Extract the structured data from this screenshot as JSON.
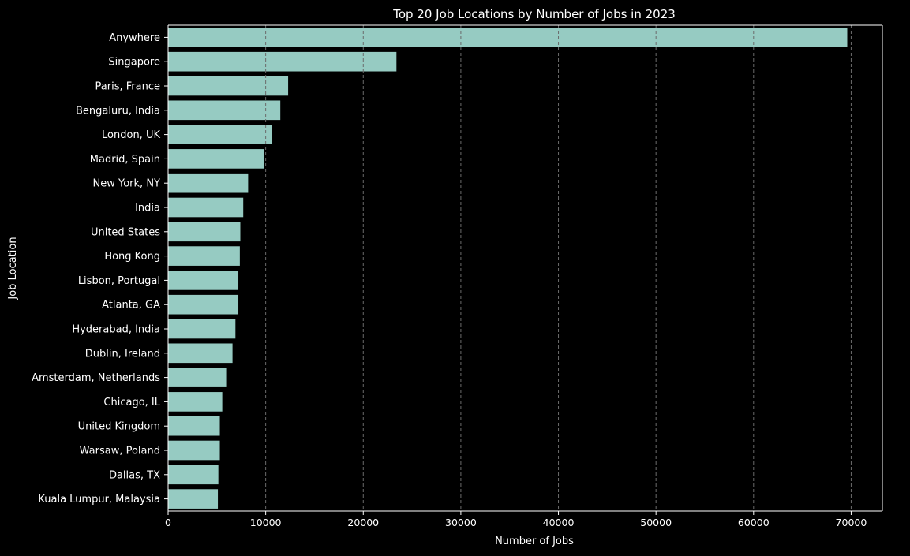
{
  "chart_data": {
    "type": "bar",
    "orientation": "horizontal",
    "title": "Top 20 Job Locations by Number of Jobs in 2023",
    "xlabel": "Number of Jobs",
    "ylabel": "Job Location",
    "xlim": [
      0,
      73200
    ],
    "xticks": [
      0,
      10000,
      20000,
      30000,
      40000,
      50000,
      60000,
      70000
    ],
    "grid": {
      "x": true,
      "y": false,
      "style": "dashed"
    },
    "legend": "none",
    "categories": [
      "Anywhere",
      "Singapore",
      "Paris, France",
      "Bengaluru, India",
      "London, UK",
      "Madrid, Spain",
      "New York, NY",
      "India",
      "United States",
      "Hong Kong",
      "Lisbon, Portugal",
      "Atlanta, GA",
      "Hyderabad, India",
      "Dublin, Ireland",
      "Amsterdam, Netherlands",
      "Chicago, IL",
      "United Kingdom",
      "Warsaw, Poland",
      "Dallas, TX",
      "Kuala Lumpur, Malaysia"
    ],
    "values": [
      69600,
      23400,
      12300,
      11500,
      10600,
      9800,
      8200,
      7700,
      7400,
      7350,
      7200,
      7200,
      6900,
      6600,
      5950,
      5550,
      5300,
      5300,
      5150,
      5100
    ],
    "colors": {
      "background": "#000000",
      "bar": "#96cbc2",
      "text": "#ffffff",
      "grid": "#6b6b6b",
      "spine": "#ffffff"
    }
  }
}
